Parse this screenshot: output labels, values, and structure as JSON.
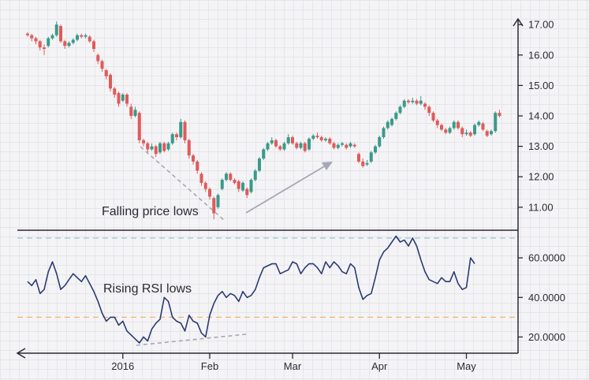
{
  "colors": {
    "up": "#3a9a8a",
    "down": "#e05a5a",
    "rsi_line": "#2b3a73",
    "overbought_line": "#9cc8d6",
    "oversold_line": "#f2b56b",
    "arrow": "#a5a8b5",
    "axis": "#2a2a33"
  },
  "chart_data": [
    {
      "type": "candlestick",
      "title": "",
      "ylim": [
        10.4,
        17.6
      ],
      "y_ticks": [
        "17.00",
        "16.00",
        "15.00",
        "14.00",
        "13.00",
        "12.00",
        "11.00"
      ],
      "y_tick_values": [
        17,
        16,
        15,
        14,
        13,
        12,
        11
      ],
      "annotation": "Falling price lows",
      "candles": [
        [
          16.7,
          16.65,
          16.75,
          16.6
        ],
        [
          16.65,
          16.55,
          16.7,
          16.45
        ],
        [
          16.55,
          16.45,
          16.6,
          16.35
        ],
        [
          16.45,
          16.25,
          16.5,
          16.15
        ],
        [
          16.25,
          16.2,
          16.35,
          16.0
        ],
        [
          16.3,
          16.55,
          16.6,
          16.25
        ],
        [
          16.55,
          16.65,
          16.7,
          16.5
        ],
        [
          16.65,
          17.0,
          17.1,
          16.6
        ],
        [
          16.95,
          16.45,
          17.0,
          16.4
        ],
        [
          16.45,
          16.3,
          16.5,
          16.2
        ],
        [
          16.3,
          16.4,
          16.45,
          16.25
        ],
        [
          16.4,
          16.5,
          16.55,
          16.35
        ],
        [
          16.5,
          16.65,
          16.7,
          16.45
        ],
        [
          16.65,
          16.6,
          16.7,
          16.55
        ],
        [
          16.6,
          16.65,
          16.7,
          16.55
        ],
        [
          16.6,
          16.45,
          16.65,
          16.4
        ],
        [
          16.45,
          16.2,
          16.5,
          16.1
        ],
        [
          16.0,
          15.8,
          16.05,
          15.7
        ],
        [
          15.8,
          15.55,
          15.85,
          15.45
        ],
        [
          15.5,
          15.3,
          15.55,
          15.2
        ],
        [
          15.35,
          14.9,
          15.4,
          14.8
        ],
        [
          14.9,
          14.7,
          14.95,
          14.6
        ],
        [
          14.75,
          14.4,
          14.8,
          14.3
        ],
        [
          14.5,
          14.7,
          14.75,
          14.45
        ],
        [
          14.7,
          14.4,
          14.75,
          14.3
        ],
        [
          14.3,
          14.0,
          14.4,
          13.9
        ],
        [
          14.0,
          14.2,
          14.3,
          13.95
        ],
        [
          14.1,
          13.2,
          14.15,
          13.1
        ],
        [
          13.2,
          13.1,
          13.25,
          13.0
        ],
        [
          13.1,
          12.9,
          13.15,
          12.8
        ],
        [
          12.9,
          13.0,
          13.1,
          12.85
        ],
        [
          13.0,
          12.75,
          13.05,
          12.65
        ],
        [
          12.8,
          13.1,
          13.15,
          12.75
        ],
        [
          13.1,
          12.85,
          13.15,
          12.8
        ],
        [
          12.9,
          13.1,
          13.15,
          12.85
        ],
        [
          13.1,
          13.4,
          13.45,
          13.05
        ],
        [
          13.4,
          13.3,
          13.45,
          13.2
        ],
        [
          13.3,
          13.8,
          13.9,
          13.25
        ],
        [
          13.8,
          13.2,
          13.85,
          13.1
        ],
        [
          13.2,
          12.7,
          13.25,
          12.6
        ],
        [
          12.7,
          12.5,
          12.75,
          12.4
        ],
        [
          12.5,
          12.2,
          12.55,
          12.1
        ],
        [
          12.1,
          11.8,
          12.15,
          11.7
        ],
        [
          11.8,
          11.6,
          11.85,
          11.5
        ],
        [
          11.6,
          11.35,
          11.65,
          11.25
        ],
        [
          11.3,
          10.8,
          11.35,
          10.6
        ],
        [
          11.0,
          11.4,
          11.45,
          10.95
        ],
        [
          11.6,
          11.9,
          11.95,
          11.55
        ],
        [
          11.9,
          12.1,
          12.15,
          11.85
        ],
        [
          12.1,
          11.9,
          12.15,
          11.85
        ],
        [
          11.9,
          11.8,
          11.95,
          11.75
        ],
        [
          11.85,
          11.6,
          11.9,
          11.5
        ],
        [
          11.55,
          11.8,
          11.85,
          11.5
        ],
        [
          11.6,
          11.4,
          11.65,
          11.3
        ],
        [
          11.5,
          11.9,
          11.95,
          11.45
        ],
        [
          11.9,
          12.2,
          12.25,
          11.85
        ],
        [
          12.2,
          12.6,
          12.65,
          12.15
        ],
        [
          12.6,
          12.9,
          12.95,
          12.55
        ],
        [
          12.9,
          13.1,
          13.15,
          12.85
        ],
        [
          13.1,
          13.2,
          13.3,
          13.05
        ],
        [
          13.2,
          13.0,
          13.25,
          12.95
        ],
        [
          13.0,
          12.9,
          13.05,
          12.85
        ],
        [
          12.9,
          13.1,
          13.15,
          12.85
        ],
        [
          13.1,
          13.3,
          13.4,
          13.05
        ],
        [
          13.3,
          13.1,
          13.35,
          13.05
        ],
        [
          13.1,
          12.95,
          13.15,
          12.9
        ],
        [
          12.95,
          13.1,
          13.15,
          12.9
        ],
        [
          13.1,
          12.85,
          13.15,
          12.8
        ],
        [
          12.9,
          13.25,
          13.3,
          12.85
        ],
        [
          13.25,
          13.35,
          13.4,
          13.2
        ],
        [
          13.35,
          13.3,
          13.45,
          13.25
        ],
        [
          13.3,
          13.2,
          13.35,
          13.15
        ],
        [
          13.2,
          13.25,
          13.3,
          13.15
        ],
        [
          13.25,
          13.1,
          13.3,
          13.05
        ],
        [
          13.1,
          12.95,
          13.15,
          12.9
        ],
        [
          12.95,
          13.05,
          13.1,
          12.9
        ],
        [
          13.05,
          13.1,
          13.15,
          13.0
        ],
        [
          13.05,
          12.95,
          13.1,
          12.9
        ],
        [
          13.0,
          13.1,
          13.15,
          12.95
        ],
        [
          13.05,
          13.0,
          13.1,
          12.95
        ],
        [
          12.75,
          12.5,
          12.8,
          12.45
        ],
        [
          12.5,
          12.35,
          12.6,
          12.3
        ],
        [
          12.4,
          12.45,
          12.55,
          12.35
        ],
        [
          12.5,
          12.8,
          12.85,
          12.45
        ],
        [
          12.8,
          13.0,
          13.05,
          12.75
        ],
        [
          13.0,
          13.3,
          13.35,
          12.95
        ],
        [
          13.3,
          13.6,
          13.65,
          13.25
        ],
        [
          13.6,
          13.8,
          13.85,
          13.55
        ],
        [
          13.7,
          13.9,
          13.95,
          13.65
        ],
        [
          13.9,
          14.1,
          14.15,
          13.85
        ],
        [
          14.1,
          14.3,
          14.35,
          14.05
        ],
        [
          14.3,
          14.5,
          14.55,
          14.25
        ],
        [
          14.5,
          14.45,
          14.55,
          14.4
        ],
        [
          14.45,
          14.5,
          14.6,
          14.4
        ],
        [
          14.5,
          14.4,
          14.55,
          14.35
        ],
        [
          14.4,
          14.5,
          14.65,
          14.35
        ],
        [
          14.4,
          14.3,
          14.45,
          14.2
        ],
        [
          14.3,
          14.1,
          14.35,
          14.0
        ],
        [
          14.1,
          13.85,
          14.15,
          13.8
        ],
        [
          13.85,
          13.7,
          13.9,
          13.6
        ],
        [
          13.7,
          13.55,
          13.75,
          13.5
        ],
        [
          13.55,
          13.45,
          13.6,
          13.4
        ],
        [
          13.45,
          13.6,
          13.65,
          13.4
        ],
        [
          13.6,
          13.8,
          13.85,
          13.55
        ],
        [
          13.8,
          13.6,
          13.85,
          13.55
        ],
        [
          13.6,
          13.4,
          13.65,
          13.3
        ],
        [
          13.4,
          13.45,
          13.55,
          13.35
        ],
        [
          13.45,
          13.35,
          13.5,
          13.3
        ],
        [
          13.4,
          13.7,
          13.75,
          13.35
        ],
        [
          13.7,
          13.8,
          13.85,
          13.65
        ],
        [
          13.75,
          13.55,
          13.8,
          13.5
        ],
        [
          13.5,
          13.35,
          13.55,
          13.3
        ],
        [
          13.4,
          13.5,
          13.55,
          13.35
        ],
        [
          13.5,
          14.1,
          14.15,
          13.45
        ],
        [
          14.1,
          14.0,
          14.2,
          13.95
        ]
      ]
    },
    {
      "type": "line",
      "title": "",
      "ylim": [
        13,
        72
      ],
      "y_ticks": [
        "60.0000",
        "40.0000",
        "20.0000"
      ],
      "y_tick_values": [
        60,
        40,
        20
      ],
      "overbought": 70,
      "oversold": 30,
      "annotation": "Rising RSI lows",
      "x_labels": [
        {
          "label": "2016",
          "index": 23
        },
        {
          "label": "Feb",
          "index": 44
        },
        {
          "label": "Mar",
          "index": 64
        },
        {
          "label": "Apr",
          "index": 85
        },
        {
          "label": "May",
          "index": 106
        }
      ],
      "values": [
        48,
        46,
        49,
        42,
        44,
        53,
        58,
        52,
        44,
        46,
        49,
        52,
        50,
        48,
        51,
        47,
        43,
        38,
        32,
        28,
        30,
        30,
        26,
        28,
        23,
        21,
        19,
        17,
        20,
        18,
        24,
        27,
        29,
        40,
        38,
        30,
        28,
        27,
        23,
        31,
        28,
        27,
        22,
        20,
        31,
        37,
        41,
        43,
        40,
        42,
        41,
        38,
        43,
        40,
        41,
        44,
        50,
        55,
        56,
        57,
        57,
        52,
        53,
        54,
        58,
        57,
        52,
        55,
        57,
        57,
        55,
        52,
        58,
        55,
        58,
        56,
        53,
        52,
        57,
        55,
        45,
        39,
        41,
        42,
        50,
        59,
        63,
        65,
        68,
        71,
        68,
        69,
        66,
        70,
        66,
        59,
        53,
        49,
        48,
        47,
        50,
        48,
        48,
        53,
        47,
        44,
        45,
        60,
        57
      ]
    }
  ]
}
